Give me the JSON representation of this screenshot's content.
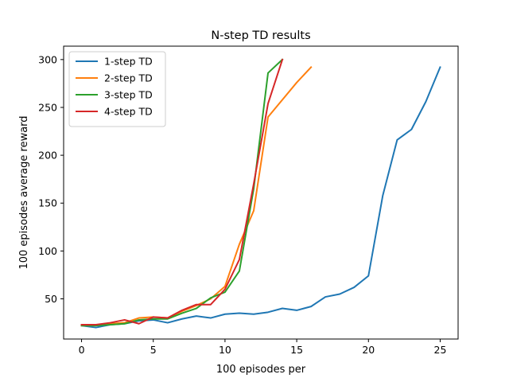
{
  "chart_data": {
    "type": "line",
    "title": "N-step TD results",
    "xlabel": "100 episodes per",
    "ylabel": "100 episodes average reward",
    "xlim": [
      -1.25,
      26.25
    ],
    "ylim": [
      8,
      314
    ],
    "xticks": [
      0,
      5,
      10,
      15,
      20,
      25
    ],
    "yticks": [
      50,
      100,
      150,
      200,
      250,
      300
    ],
    "grid": false,
    "legend_position": "top-left",
    "series": [
      {
        "name": "1-step TD",
        "color": "#1f77b4",
        "x": [
          0,
          1,
          2,
          3,
          4,
          5,
          6,
          7,
          8,
          9,
          10,
          11,
          12,
          13,
          14,
          15,
          16,
          17,
          18,
          19,
          20,
          21,
          22,
          23,
          24,
          25
        ],
        "y": [
          22,
          20,
          23,
          24,
          27,
          28,
          25,
          29,
          32,
          30,
          34,
          35,
          34,
          36,
          40,
          38,
          42,
          52,
          55,
          62,
          74,
          158,
          216,
          227,
          256,
          292
        ]
      },
      {
        "name": "2-step TD",
        "color": "#ff7f0e",
        "x": [
          0,
          1,
          2,
          3,
          4,
          5,
          6,
          7,
          8,
          9,
          10,
          11,
          12,
          13,
          14,
          15,
          16
        ],
        "y": [
          22,
          22,
          24,
          25,
          30,
          31,
          30,
          37,
          43,
          50,
          63,
          107,
          142,
          240,
          258,
          276,
          292
        ]
      },
      {
        "name": "3-step TD",
        "color": "#2ca02c",
        "x": [
          0,
          1,
          2,
          3,
          4,
          5,
          6,
          7,
          8,
          9,
          10,
          11,
          12,
          13,
          14
        ],
        "y": [
          22,
          22,
          23,
          24,
          28,
          29,
          29,
          35,
          40,
          51,
          57,
          79,
          165,
          286,
          300
        ]
      },
      {
        "name": "4-step TD",
        "color": "#d62728",
        "x": [
          0,
          1,
          2,
          3,
          4,
          5,
          6,
          7,
          8,
          9,
          10,
          11,
          12,
          13,
          14
        ],
        "y": [
          23,
          23,
          25,
          28,
          24,
          31,
          30,
          38,
          44,
          44,
          60,
          91,
          170,
          254,
          300
        ]
      }
    ]
  }
}
